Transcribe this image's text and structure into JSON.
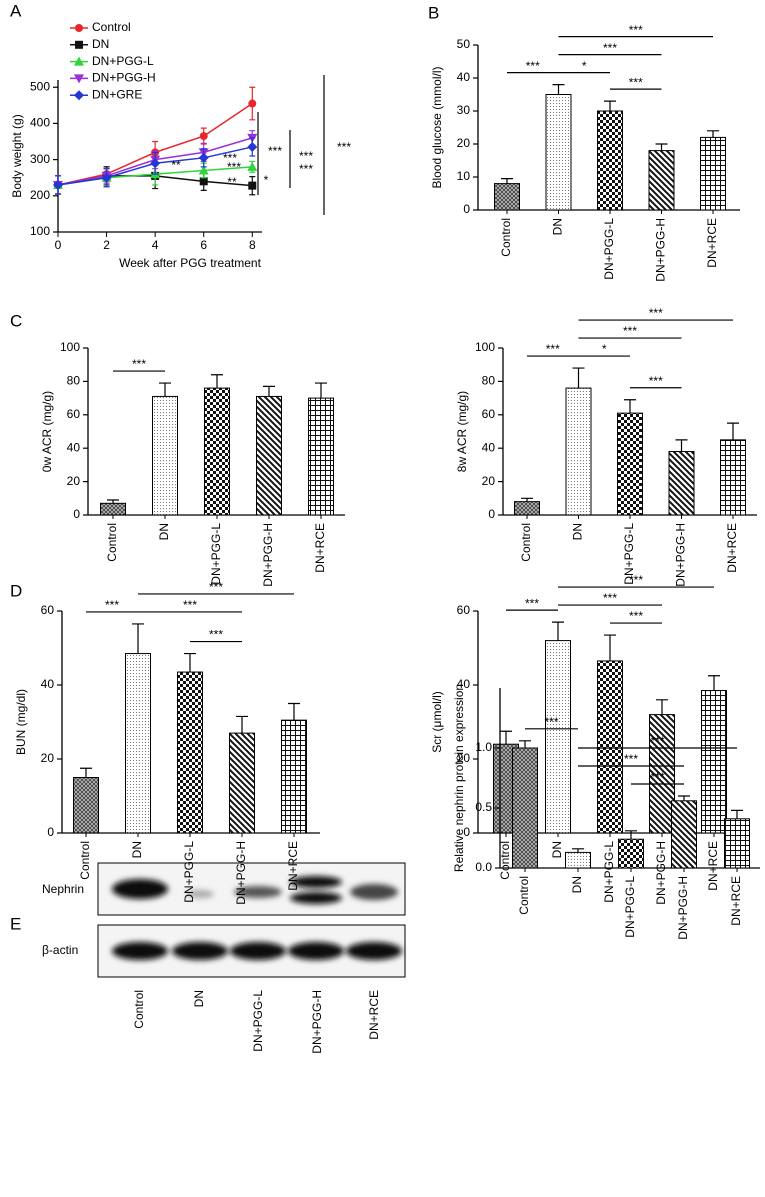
{
  "panel_labels": [
    "A",
    "B",
    "C",
    "D",
    "E"
  ],
  "chart_data": [
    {
      "type": "line",
      "xlabel": "Week after PGG treatment",
      "ylabel": "Body weight (g)",
      "x": [
        0,
        2,
        4,
        6,
        8
      ],
      "xlim": [
        0,
        8.4
      ],
      "xticks": [
        0,
        2,
        4,
        6,
        8
      ],
      "ylim": [
        100,
        520
      ],
      "yticks": [
        100,
        200,
        300,
        400,
        500
      ],
      "series": [
        {
          "name": "Control",
          "color": "#e8262b",
          "marker": "circle",
          "values": [
            230,
            260,
            320,
            365,
            455
          ],
          "errors": [
            25,
            20,
            30,
            22,
            45
          ]
        },
        {
          "name": "DN",
          "color": "#111111",
          "marker": "square",
          "values": [
            230,
            255,
            255,
            240,
            228
          ],
          "errors": [
            25,
            25,
            35,
            25,
            25
          ]
        },
        {
          "name": "DN+PGG-L",
          "color": "#2fd53a",
          "marker": "triangle-up",
          "values": [
            230,
            250,
            260,
            270,
            280
          ],
          "errors": [
            25,
            25,
            30,
            20,
            15
          ]
        },
        {
          "name": "DN+PGG-H",
          "color": "#9b30d9",
          "marker": "triangle-down",
          "values": [
            230,
            255,
            300,
            320,
            360
          ],
          "errors": [
            25,
            20,
            25,
            25,
            20
          ]
        },
        {
          "name": "DN+GRE",
          "color": "#2436d6",
          "marker": "diamond",
          "values": [
            230,
            250,
            290,
            305,
            335
          ],
          "errors": [
            25,
            25,
            30,
            25,
            25
          ]
        }
      ],
      "annotations": [
        "**",
        "***",
        "***",
        "**",
        "*",
        "***",
        "***",
        "***",
        "***"
      ]
    },
    {
      "type": "bar",
      "ylabel": "Blood glucose (mmol/l)",
      "categories": [
        "Control",
        "DN",
        "DN+PGG-L",
        "DN+PGG-H",
        "DN+RCE"
      ],
      "values": [
        8,
        35,
        30,
        18,
        22
      ],
      "errors": [
        1.5,
        3,
        3,
        2,
        2
      ],
      "patterns": [
        "crosshatch",
        "dots",
        "checker",
        "diagonal",
        "grid"
      ],
      "ylim": [
        0,
        50
      ],
      "yticks": [
        0,
        10,
        20,
        30,
        40,
        50
      ],
      "comparisons": [
        {
          "groups": [
            "Control",
            "DN"
          ],
          "label": "***"
        },
        {
          "groups": [
            "DN",
            "DN+PGG-L"
          ],
          "label": "*"
        },
        {
          "groups": [
            "DN+PGG-L",
            "DN+PGG-H"
          ],
          "label": "***"
        },
        {
          "groups": [
            "DN",
            "DN+PGG-H"
          ],
          "label": "***"
        },
        {
          "groups": [
            "DN",
            "DN+RCE"
          ],
          "label": "***"
        }
      ]
    },
    {
      "type": "bar",
      "ylabel": "0w ACR (mg/g)",
      "categories": [
        "Control",
        "DN",
        "DN+PGG-L",
        "DN+PGG-H",
        "DN+RCE"
      ],
      "values": [
        7,
        71,
        76,
        71,
        70
      ],
      "errors": [
        2,
        8,
        8,
        6,
        9
      ],
      "patterns": [
        "crosshatch",
        "dots",
        "checker",
        "diagonal",
        "grid"
      ],
      "ylim": [
        0,
        100
      ],
      "yticks": [
        0,
        20,
        40,
        60,
        80,
        100
      ],
      "comparisons": [
        {
          "groups": [
            "Control",
            "DN"
          ],
          "label": "***"
        }
      ]
    },
    {
      "type": "bar",
      "ylabel": "8w ACR (mg/g)",
      "categories": [
        "Control",
        "DN",
        "DN+PGG-L",
        "DN+PGG-H",
        "DN+RCE"
      ],
      "values": [
        8,
        76,
        61,
        38,
        45
      ],
      "errors": [
        2,
        12,
        8,
        7,
        10
      ],
      "patterns": [
        "crosshatch",
        "dots",
        "checker",
        "diagonal",
        "grid"
      ],
      "ylim": [
        0,
        100
      ],
      "yticks": [
        0,
        20,
        40,
        60,
        80,
        100
      ],
      "comparisons": [
        {
          "groups": [
            "Control",
            "DN"
          ],
          "label": "***"
        },
        {
          "groups": [
            "DN",
            "DN+PGG-L"
          ],
          "label": "*"
        },
        {
          "groups": [
            "DN+PGG-L",
            "DN+PGG-H"
          ],
          "label": "***"
        },
        {
          "groups": [
            "DN",
            "DN+PGG-H"
          ],
          "label": "***"
        },
        {
          "groups": [
            "DN",
            "DN+RCE"
          ],
          "label": "***"
        }
      ]
    },
    {
      "type": "bar",
      "ylabel": "BUN (mg/dl)",
      "categories": [
        "Control",
        "DN",
        "DN+PGG-L",
        "DN+PGG-H",
        "DN+RCE"
      ],
      "values": [
        15,
        48.5,
        43.5,
        27,
        30.5
      ],
      "errors": [
        2.5,
        8,
        5,
        4.5,
        4.5
      ],
      "patterns": [
        "crosshatch",
        "dots",
        "checker",
        "diagonal",
        "grid"
      ],
      "ylim": [
        0,
        60
      ],
      "yticks": [
        0,
        20,
        40,
        60
      ],
      "comparisons": [
        {
          "groups": [
            "Control",
            "DN"
          ],
          "label": "***"
        },
        {
          "groups": [
            "DN+PGG-L",
            "DN+PGG-H"
          ],
          "label": "***"
        },
        {
          "groups": [
            "DN",
            "DN+PGG-H"
          ],
          "label": "***"
        },
        {
          "groups": [
            "DN",
            "DN+RCE"
          ],
          "label": "***"
        }
      ]
    },
    {
      "type": "bar",
      "ylabel": "Scr (μmol/l)",
      "categories": [
        "Control",
        "DN",
        "DN+PGG-L",
        "DN+PGG-H",
        "DN+RCE"
      ],
      "values": [
        24,
        52,
        46.5,
        32,
        38.5
      ],
      "errors": [
        3.5,
        5,
        7,
        4,
        4
      ],
      "patterns": [
        "crosshatch",
        "dots",
        "checker",
        "diagonal",
        "grid"
      ],
      "ylim": [
        0,
        60
      ],
      "yticks": [
        0,
        20,
        40,
        60
      ],
      "comparisons": [
        {
          "groups": [
            "Control",
            "DN"
          ],
          "label": "***"
        },
        {
          "groups": [
            "DN+PGG-L",
            "DN+PGG-H"
          ],
          "label": "***"
        },
        {
          "groups": [
            "DN",
            "DN+PGG-H"
          ],
          "label": "***"
        },
        {
          "groups": [
            "DN",
            "DN+RCE"
          ],
          "label": "***"
        }
      ]
    },
    {
      "type": "bar",
      "ylabel": "Relative nephrin protein expression",
      "categories": [
        "Control",
        "DN",
        "DN+PGG-L",
        "DN+PGG-H",
        "DN+RCE"
      ],
      "values": [
        1.0,
        0.13,
        0.24,
        0.56,
        0.41
      ],
      "errors": [
        0.06,
        0.03,
        0.07,
        0.04,
        0.07
      ],
      "patterns": [
        "crosshatch",
        "dots",
        "checker",
        "diagonal",
        "grid"
      ],
      "ylim": [
        0,
        1.5
      ],
      "yticks": [
        {
          "value": 0,
          "label": "0.0"
        },
        0.5,
        {
          "value": 1,
          "label": "1.0"
        }
      ],
      "comparisons": [
        {
          "groups": [
            "Control",
            "DN"
          ],
          "label": "***"
        },
        {
          "groups": [
            "DN+PGG-L",
            "DN+PGG-H"
          ],
          "label": "***"
        },
        {
          "groups": [
            "DN",
            "DN+PGG-H"
          ],
          "label": "***"
        },
        {
          "groups": [
            "DN",
            "DN+RCE"
          ],
          "label": "***"
        }
      ]
    }
  ],
  "blot": {
    "rows": [
      "Nephrin",
      "β-actin"
    ],
    "lanes": [
      "Control",
      "DN",
      "DN+PGG-L",
      "DN+PGG-H",
      "DN+RCE"
    ]
  }
}
